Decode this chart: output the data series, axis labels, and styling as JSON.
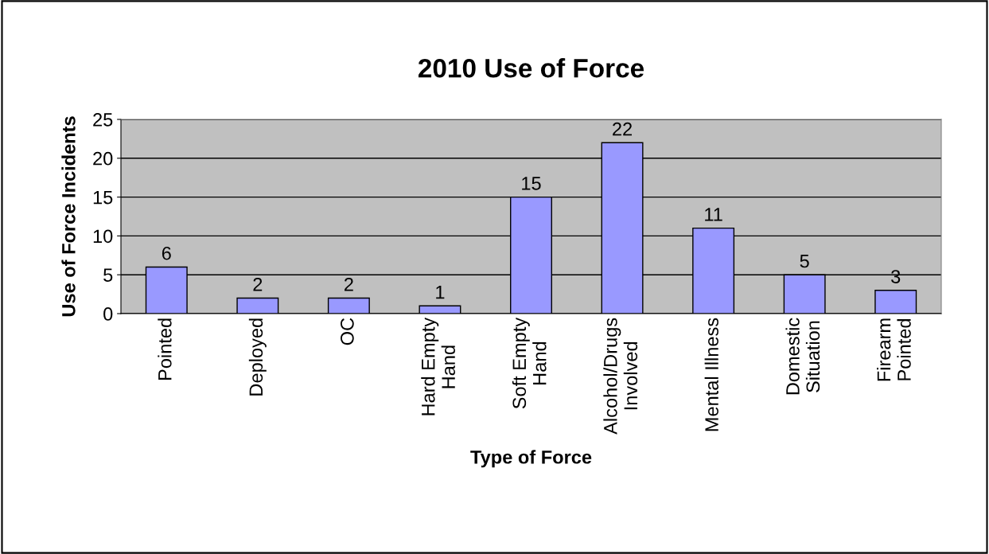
{
  "chart_data": {
    "type": "bar",
    "title": "2010 Use of Force",
    "xlabel": "Type of Force",
    "ylabel": "Use of Force Incidents",
    "categories": [
      "Pointed",
      "Deployed",
      "OC",
      "Hard Empty\nHand",
      "Soft Empty\nHand",
      "Alcohol/Drugs\nInvolved",
      "Mental Illness",
      "Domestic\nSituation",
      "Firearm\nPointed"
    ],
    "values": [
      6,
      2,
      2,
      1,
      15,
      22,
      11,
      5,
      3
    ],
    "color": "#9999ff",
    "ylim": [
      0,
      25
    ],
    "yticks": [
      0,
      5,
      10,
      15,
      20,
      25
    ],
    "grid": "y",
    "data_labels": true
  }
}
